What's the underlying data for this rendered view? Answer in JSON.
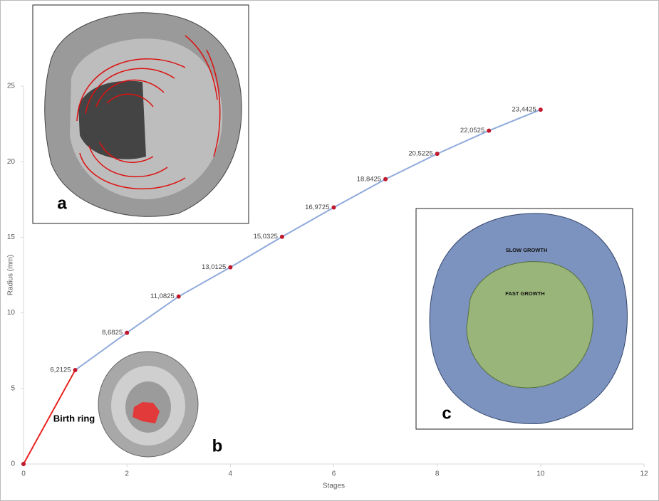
{
  "chart_data": {
    "type": "line",
    "x_label": "Stages",
    "y_label": "Radius (mm)",
    "x": [
      0,
      1,
      2,
      3,
      4,
      5,
      6,
      7,
      8,
      9,
      10
    ],
    "values": [
      0,
      6.2125,
      8.6825,
      11.0825,
      13.0125,
      15.0325,
      16.9725,
      18.8425,
      20.5225,
      22.0525,
      23.4425
    ],
    "value_labels": [
      null,
      "6,2125",
      "8,6825",
      "11,0825",
      "13,0125",
      "15,0325",
      "16,9725",
      "18,8425",
      "20,5225",
      "22,0525",
      "23,4425"
    ],
    "line_color": "#8faadc",
    "first_segment_color": "#e8231e",
    "marker_color": "#c0182c",
    "xlim": [
      0,
      12
    ],
    "xticks": [
      0,
      2,
      4,
      6,
      8,
      10,
      12
    ],
    "ylim": [
      0,
      25
    ],
    "yticks": [
      0,
      5,
      10,
      15,
      20,
      25
    ],
    "annotations": {
      "birth": "Birth ring",
      "a": "a",
      "b": "b",
      "c": "c",
      "slow": "SLOW GROWTH",
      "fast": "FAST GROWTH"
    }
  }
}
